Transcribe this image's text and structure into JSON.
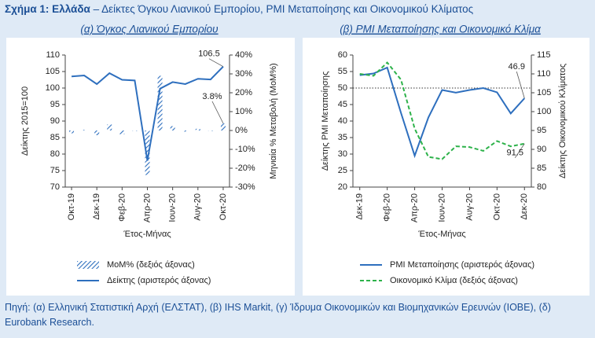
{
  "figure": {
    "label": "Σχήμα 1: Ελλάδα",
    "title": "– Δείκτες Όγκου Λιανικού Εμπορίου, PMI Μεταποίησης και Οικονομικού Κλίματος"
  },
  "chart_data": [
    {
      "type": "combo",
      "title": "(α) Όγκος Λιανικού Εμπορίου",
      "x_label": "Έτος-Μήνας",
      "y_label": "Δείκτης 2015=100",
      "y2_label": "Μηνιαία % Μεταβολή (MoM%)",
      "categories": [
        "Οκτ-19",
        null,
        "Δεκ-19",
        null,
        "Φεβ-20",
        null,
        "Απρ-20",
        null,
        "Ιουν-20",
        null,
        "Αυγ-20",
        null,
        "Οκτ-20"
      ],
      "series": [
        {
          "name": "MoM% (δεξιός άξονας)",
          "type": "bar",
          "axis": "y2",
          "color": "#2e6fbe",
          "values": [
            -1.5,
            0.3,
            -2.5,
            3.2,
            -2,
            0,
            -23.6,
            29,
            2.3,
            -0.6,
            0.9,
            0,
            3.8
          ]
        },
        {
          "name": "Δείκτης (αριστερός άξονας)",
          "type": "line",
          "axis": "y",
          "color": "#2e6fbe",
          "values": [
            103.5,
            103.8,
            101.2,
            104.5,
            102.5,
            102.3,
            78,
            99.8,
            101.8,
            101.2,
            102.8,
            102.6,
            106.5
          ]
        }
      ],
      "ylim": [
        70,
        110
      ],
      "yticks": [
        70,
        75,
        80,
        85,
        90,
        95,
        100,
        105,
        110
      ],
      "y2lim": [
        -30,
        40
      ],
      "y2ticks": [
        {
          "value": -30,
          "label": "-30%"
        },
        {
          "value": -20,
          "label": "-20%"
        },
        {
          "value": -10,
          "label": "-10%"
        },
        {
          "value": 0,
          "label": "0%"
        },
        {
          "value": 10,
          "label": "10%"
        },
        {
          "value": 20,
          "label": "20%"
        },
        {
          "value": 30,
          "label": "30%"
        },
        {
          "value": 40,
          "label": "40%"
        }
      ],
      "annotations": [
        "106.5",
        "3.8%"
      ]
    },
    {
      "type": "line",
      "title": "(β) PMI Μεταποίησης και Οικονομικό Κλίμα",
      "x_label": "Έτος-Μήνας",
      "y_label": "Δείκτης PMI Μεταποίησης",
      "y2_label": "Δείκτης Οικονομικού Κλίματος",
      "categories": [
        "Δεκ-19",
        null,
        "Φεβ-20",
        null,
        "Απρ-20",
        null,
        "Ιουν-20",
        null,
        "Αυγ-20",
        null,
        "Οκτ-20",
        null,
        "Δεκ-20"
      ],
      "series": [
        {
          "name": "PMI Μεταποίησης (αριστερός άξονας)",
          "type": "line",
          "axis": "y",
          "color": "#2e6fbe",
          "values": [
            53.9,
            54.4,
            56.2,
            42.5,
            29.5,
            41.1,
            49.4,
            48.6,
            49.4,
            50.0,
            48.7,
            42.3,
            46.9
          ]
        },
        {
          "name": "Οικονομικό Κλίμα (δεξιός άξονας)",
          "type": "line",
          "axis": "y2",
          "color": "#2db24a",
          "dash": true,
          "values": [
            110,
            109.5,
            113,
            108.5,
            95.5,
            88,
            87.4,
            90.8,
            90.6,
            89.6,
            92.2,
            90.8,
            91.5
          ]
        }
      ],
      "ylim": [
        20,
        60
      ],
      "yticks": [
        20,
        25,
        30,
        35,
        40,
        45,
        50,
        55,
        60
      ],
      "y2lim": [
        80,
        115
      ],
      "y2ticks": [
        80,
        85,
        90,
        95,
        100,
        105,
        110,
        115
      ],
      "ref_line": 50,
      "annotations": [
        "46.9",
        "91.5"
      ]
    }
  ],
  "source": "Πηγή: (α) Ελληνική Στατιστική Αρχή (ΕΛΣΤΑΤ), (β) IHS Markit, (γ) Ίδρυμα Οικονομικών και Βιομηχανικών Ερευνών (ΙΟΒΕ), (δ) Eurobank Research."
}
